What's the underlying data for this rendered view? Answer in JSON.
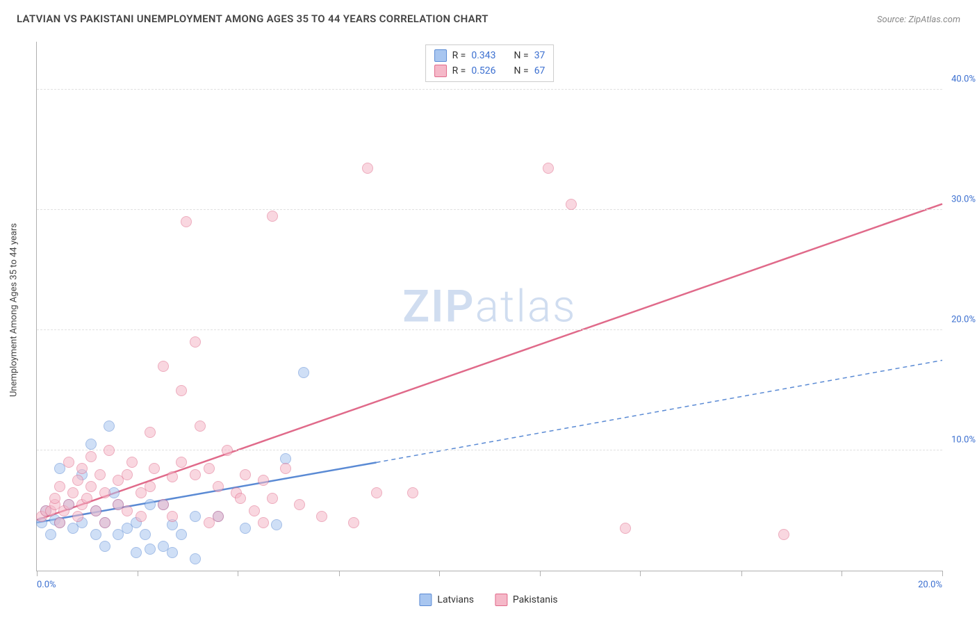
{
  "title": "LATVIAN VS PAKISTANI UNEMPLOYMENT AMONG AGES 35 TO 44 YEARS CORRELATION CHART",
  "source_prefix": "Source:",
  "source_name": "ZipAtlas.com",
  "watermark_a": "ZIP",
  "watermark_b": "atlas",
  "yaxis_title": "Unemployment Among Ages 35 to 44 years",
  "chart": {
    "type": "scatter",
    "xlim": [
      0,
      20
    ],
    "ylim": [
      0,
      44
    ],
    "x_ticks": [
      0,
      2.22,
      4.44,
      6.67,
      8.89,
      11.11,
      13.33,
      15.56,
      17.78,
      20
    ],
    "y_gridlines": [
      10,
      20,
      30,
      40
    ],
    "y_tick_labels": {
      "10": "10.0%",
      "20": "20.0%",
      "30": "30.0%",
      "40": "40.0%"
    },
    "x_label_min": "0.0%",
    "x_label_max": "20.0%",
    "background_color": "#ffffff",
    "grid_color": "#e0e0e0",
    "axis_color": "#b0b0b0",
    "label_fontsize": 13,
    "label_color": "#3b6fd0",
    "point_radius": 8,
    "point_opacity": 0.55,
    "series": [
      {
        "name": "Latvians",
        "label": "Latvians",
        "fill": "#a8c6f0",
        "stroke": "#5a8ad4",
        "R_label": "R =",
        "R": "0.343",
        "N_label": "N =",
        "N": "37",
        "trend": {
          "x1": 0,
          "y1": 4.0,
          "x2_solid": 7.5,
          "y2_solid": 9.0,
          "x2": 20,
          "y2": 17.5,
          "solid_width": 2.5,
          "dashed": true
        },
        "points": [
          [
            0.1,
            4.0
          ],
          [
            0.2,
            5.0
          ],
          [
            0.3,
            3.0
          ],
          [
            0.4,
            4.2
          ],
          [
            0.5,
            8.5
          ],
          [
            0.5,
            4.0
          ],
          [
            0.7,
            5.5
          ],
          [
            0.8,
            3.5
          ],
          [
            1.0,
            4.0
          ],
          [
            1.0,
            8.0
          ],
          [
            1.2,
            10.5
          ],
          [
            1.3,
            3.0
          ],
          [
            1.3,
            5.0
          ],
          [
            1.5,
            4.0
          ],
          [
            1.5,
            2.0
          ],
          [
            1.6,
            12.0
          ],
          [
            1.8,
            5.5
          ],
          [
            1.8,
            3.0
          ],
          [
            2.0,
            3.5
          ],
          [
            2.2,
            4.0
          ],
          [
            2.2,
            1.5
          ],
          [
            2.4,
            3.0
          ],
          [
            2.5,
            1.8
          ],
          [
            2.8,
            2.0
          ],
          [
            2.8,
            5.5
          ],
          [
            3.0,
            3.8
          ],
          [
            3.0,
            1.5
          ],
          [
            3.2,
            3.0
          ],
          [
            3.5,
            1.0
          ],
          [
            5.3,
            3.8
          ],
          [
            5.5,
            9.3
          ],
          [
            5.9,
            16.5
          ],
          [
            4.6,
            3.5
          ],
          [
            4.0,
            4.5
          ],
          [
            3.5,
            4.5
          ],
          [
            2.5,
            5.5
          ],
          [
            1.7,
            6.5
          ]
        ]
      },
      {
        "name": "Pakistanis",
        "label": "Pakistanis",
        "fill": "#f5b8c8",
        "stroke": "#e06a8a",
        "R_label": "R =",
        "R": "0.526",
        "N_label": "N =",
        "N": "67",
        "trend": {
          "x1": 0,
          "y1": 4.2,
          "x2_solid": 20,
          "y2_solid": 30.5,
          "x2": 20,
          "y2": 30.5,
          "solid_width": 2.5,
          "dashed": false
        },
        "points": [
          [
            0.1,
            4.5
          ],
          [
            0.2,
            5.0
          ],
          [
            0.3,
            5.0
          ],
          [
            0.4,
            5.5
          ],
          [
            0.4,
            6.0
          ],
          [
            0.5,
            4.0
          ],
          [
            0.5,
            7.0
          ],
          [
            0.6,
            5.0
          ],
          [
            0.7,
            5.5
          ],
          [
            0.7,
            9.0
          ],
          [
            0.8,
            6.5
          ],
          [
            0.9,
            4.5
          ],
          [
            0.9,
            7.5
          ],
          [
            1.0,
            5.5
          ],
          [
            1.0,
            8.5
          ],
          [
            1.1,
            6.0
          ],
          [
            1.2,
            7.0
          ],
          [
            1.2,
            9.5
          ],
          [
            1.3,
            5.0
          ],
          [
            1.4,
            8.0
          ],
          [
            1.5,
            6.5
          ],
          [
            1.5,
            4.0
          ],
          [
            1.6,
            10.0
          ],
          [
            1.8,
            7.5
          ],
          [
            1.8,
            5.5
          ],
          [
            2.0,
            8.0
          ],
          [
            2.0,
            5.0
          ],
          [
            2.1,
            9.0
          ],
          [
            2.3,
            6.5
          ],
          [
            2.3,
            4.5
          ],
          [
            2.5,
            11.5
          ],
          [
            2.5,
            7.0
          ],
          [
            2.6,
            8.5
          ],
          [
            2.8,
            5.5
          ],
          [
            2.8,
            17.0
          ],
          [
            3.0,
            7.8
          ],
          [
            3.0,
            4.5
          ],
          [
            3.2,
            9.0
          ],
          [
            3.2,
            15.0
          ],
          [
            3.3,
            29.0
          ],
          [
            3.5,
            8.0
          ],
          [
            3.5,
            19.0
          ],
          [
            3.6,
            12.0
          ],
          [
            3.8,
            4.0
          ],
          [
            3.8,
            8.5
          ],
          [
            4.0,
            7.0
          ],
          [
            4.0,
            4.5
          ],
          [
            4.2,
            10.0
          ],
          [
            4.4,
            6.5
          ],
          [
            4.6,
            8.0
          ],
          [
            4.8,
            5.0
          ],
          [
            5.0,
            7.5
          ],
          [
            5.0,
            4.0
          ],
          [
            5.2,
            29.5
          ],
          [
            5.2,
            6.0
          ],
          [
            5.5,
            8.5
          ],
          [
            5.8,
            5.5
          ],
          [
            6.3,
            4.5
          ],
          [
            7.0,
            4.0
          ],
          [
            7.3,
            33.5
          ],
          [
            7.5,
            6.5
          ],
          [
            8.3,
            6.5
          ],
          [
            11.3,
            33.5
          ],
          [
            11.8,
            30.5
          ],
          [
            13.0,
            3.5
          ],
          [
            16.5,
            3.0
          ],
          [
            4.5,
            6.0
          ]
        ]
      }
    ]
  },
  "legend_stats_order": [
    0,
    1
  ],
  "bottom_legend_order": [
    0,
    1
  ]
}
